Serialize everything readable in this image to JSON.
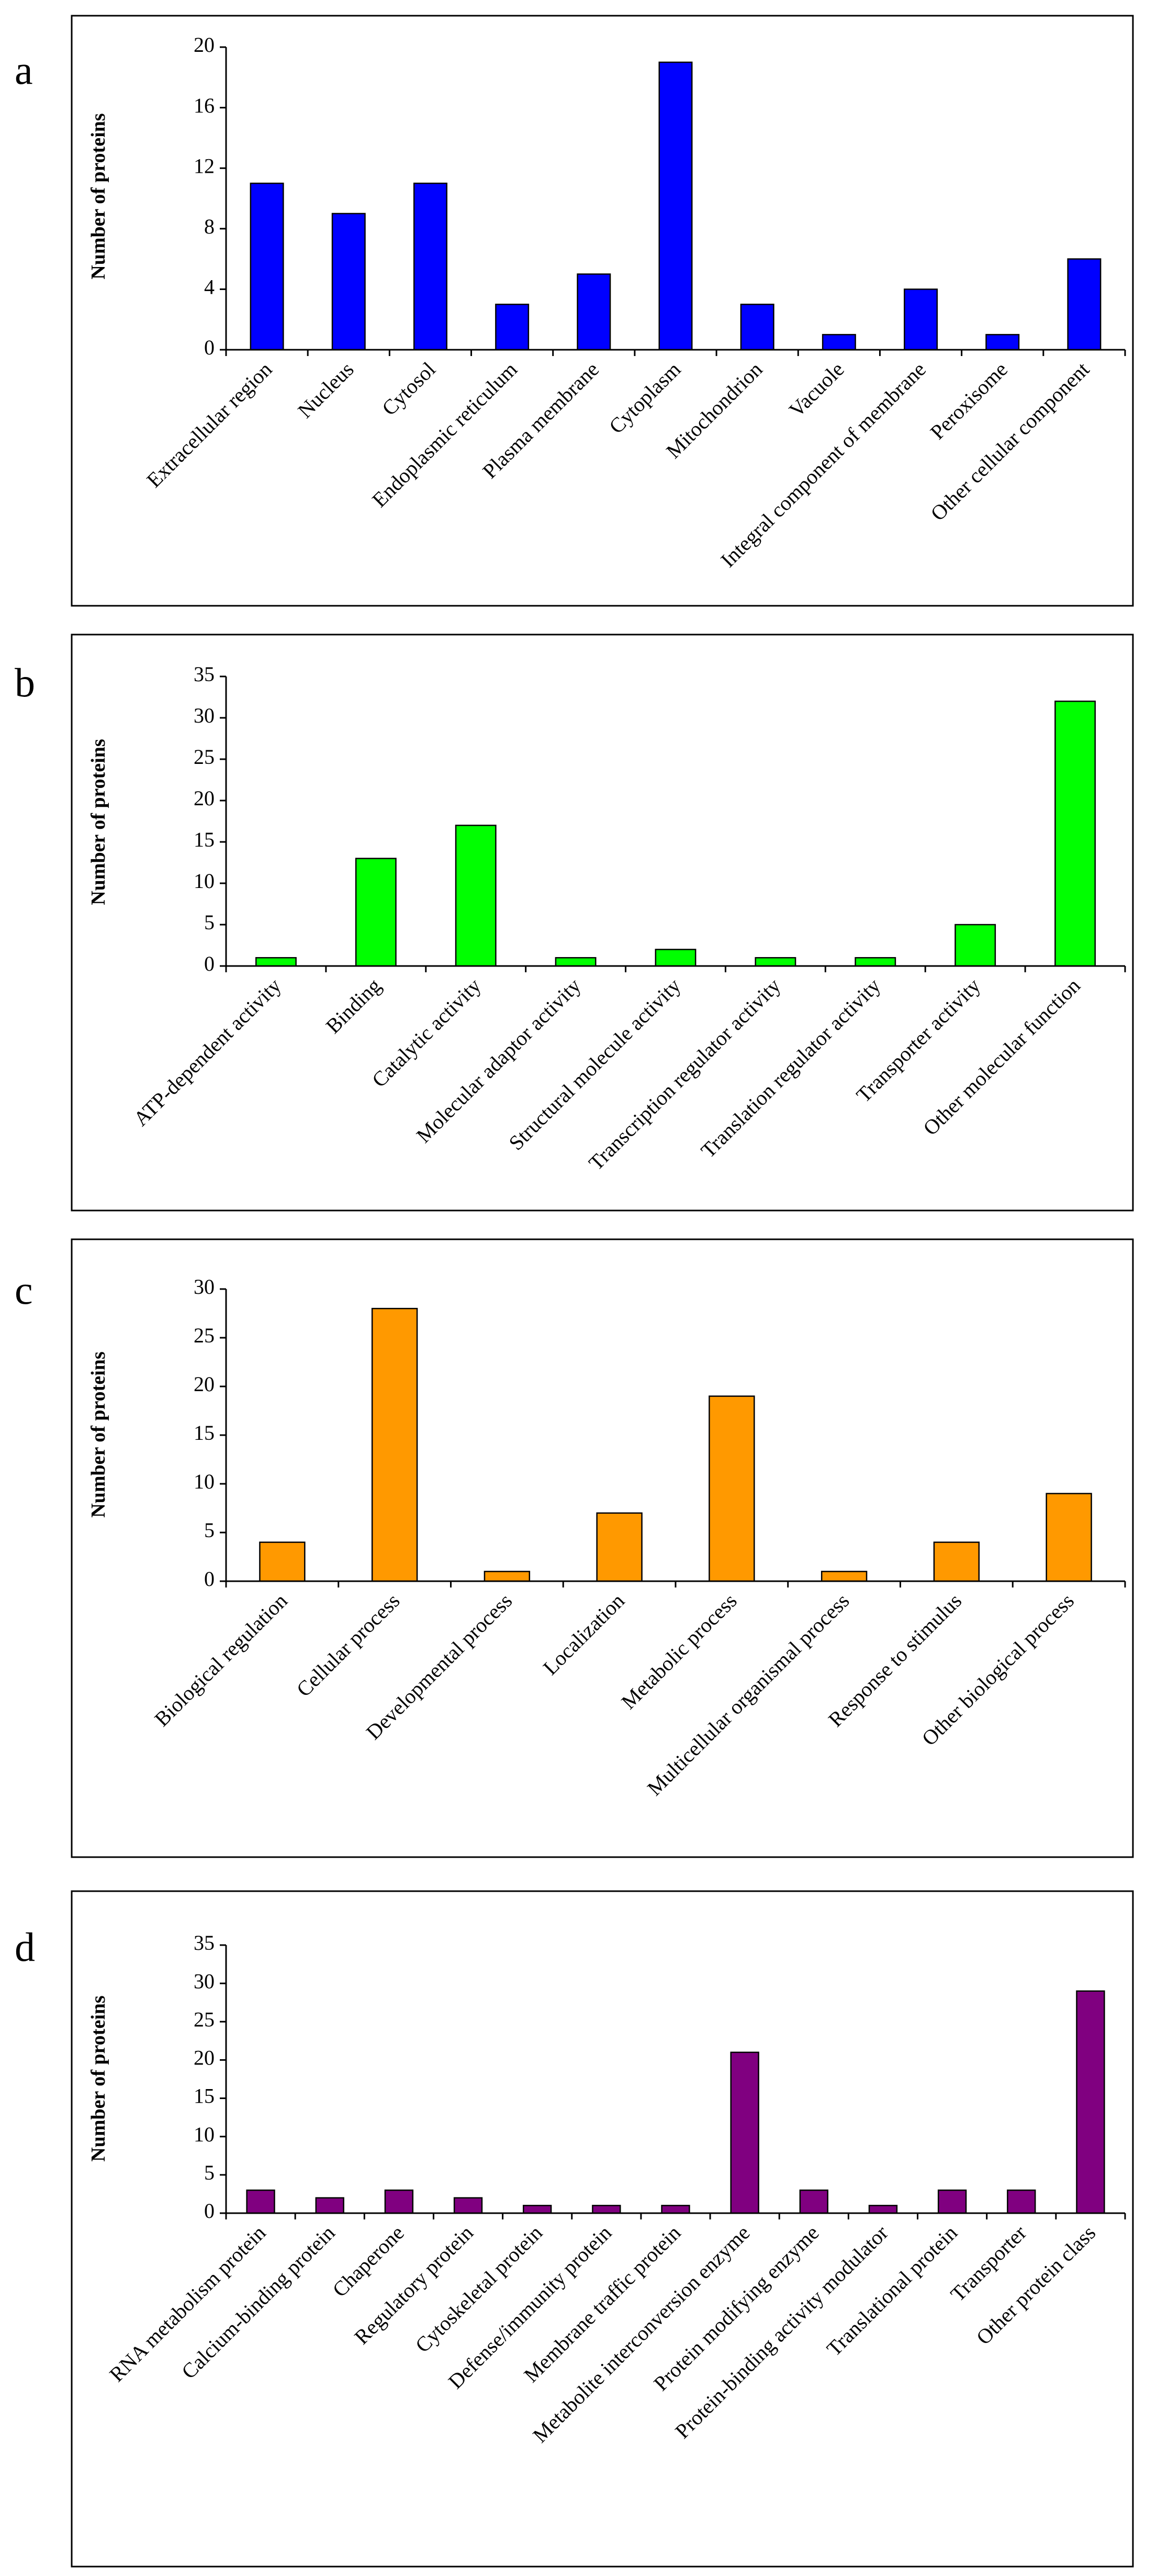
{
  "chart_data": [
    {
      "type": "bar",
      "panel_label": "a",
      "title": "",
      "xlabel": "",
      "ylabel": "Number of proteins",
      "color": "#0000FF",
      "ylim": [
        0,
        20
      ],
      "yticks": [
        0,
        4,
        8,
        12,
        16,
        20
      ],
      "categories": [
        "Extracellular region",
        "Nucleus",
        "Cytosol",
        "Endoplasmic reticulum",
        "Plasma membrane",
        "Cytoplasm",
        "Mitochondrion",
        "Vacuole",
        "Integral component of membrane",
        "Peroxisome",
        "Other cellular component"
      ],
      "values": [
        11,
        9,
        11,
        3,
        5,
        19,
        3,
        1,
        4,
        1,
        6
      ]
    },
    {
      "type": "bar",
      "panel_label": "b",
      "title": "",
      "xlabel": "",
      "ylabel": "Number of proteins",
      "color": "#00FF00",
      "ylim": [
        0,
        35
      ],
      "yticks": [
        0,
        5,
        10,
        15,
        20,
        25,
        30,
        35
      ],
      "categories": [
        "ATP-dependent activity",
        "Binding",
        "Catalytic activity",
        "Molecular adaptor activity",
        "Structural molecule activity",
        "Transcription regulator activity",
        "Translation regulator activity",
        "Transporter activity",
        "Other molecular function"
      ],
      "values": [
        1,
        13,
        17,
        1,
        2,
        1,
        1,
        5,
        32
      ]
    },
    {
      "type": "bar",
      "panel_label": "c",
      "title": "",
      "xlabel": "",
      "ylabel": "Number of proteins",
      "color": "#FF9900",
      "ylim": [
        0,
        30
      ],
      "yticks": [
        0,
        5,
        10,
        15,
        20,
        25,
        30
      ],
      "categories": [
        "Biological regulation",
        "Cellular process",
        "Developmental process",
        "Localization",
        "Metabolic process",
        "Multicellular organismal process",
        "Response to stimulus",
        "Other biological process"
      ],
      "values": [
        4,
        28,
        1,
        7,
        19,
        1,
        4,
        9
      ]
    },
    {
      "type": "bar",
      "panel_label": "d",
      "title": "",
      "xlabel": "",
      "ylabel": "Number of proteins",
      "color": "#800080",
      "ylim": [
        0,
        35
      ],
      "yticks": [
        0,
        5,
        10,
        15,
        20,
        25,
        30,
        35
      ],
      "categories": [
        "RNA metabolism protein",
        "Calcium-binding protein",
        "Chaperone",
        "Regulatory protein",
        "Cytoskeletal protein",
        "Defense/immunity protein",
        "Membrane traffic protein",
        "Metabolite interconversion enzyme",
        "Protein modifying enzyme",
        "Protein-binding activity modulator",
        "Translational protein",
        "Transporter",
        "Other protein class"
      ],
      "values": [
        3,
        2,
        3,
        2,
        1,
        1,
        1,
        21,
        3,
        1,
        3,
        3,
        29
      ]
    }
  ]
}
